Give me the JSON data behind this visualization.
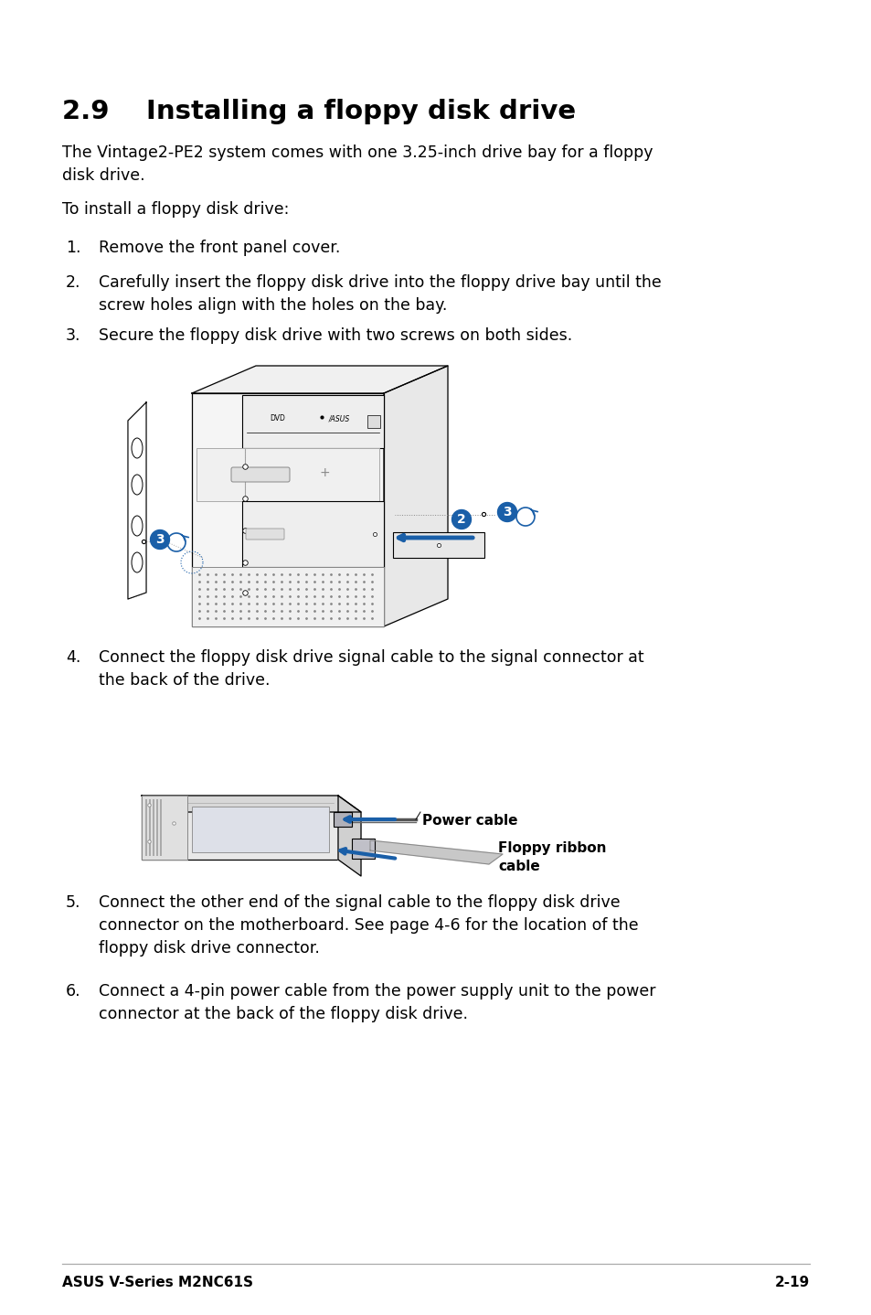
{
  "bg_color": "#ffffff",
  "title": "2.9    Installing a floppy disk drive",
  "para1": "The Vintage2-PE2 system comes with one 3.25-inch drive bay for a floppy\ndisk drive.",
  "para2": "To install a floppy disk drive:",
  "step1": "Remove the front panel cover.",
  "step2": "Carefully insert the floppy disk drive into the floppy drive bay until the\nscrew holes align with the holes on the bay.",
  "step3": "Secure the floppy disk drive with two screws on both sides.",
  "step4_text": "Connect the floppy disk drive signal cable to the signal connector at\nthe back of the drive.",
  "step5_text": "Connect the other end of the signal cable to the floppy disk drive\nconnector on the motherboard. See page 4-6 for the location of the\nfloppy disk drive connector.",
  "step6_text": "Connect a 4-pin power cable from the power supply unit to the power\nconnector at the back of the floppy disk drive.",
  "footer_left": "ASUS V-Series M2NC61S",
  "footer_right": "2-19",
  "label_power": "Power cable",
  "label_floppy": "Floppy ribbon\ncable",
  "blue": "#1a5fa8",
  "black": "#000000",
  "gray_light": "#cccccc",
  "gray_med": "#999999"
}
